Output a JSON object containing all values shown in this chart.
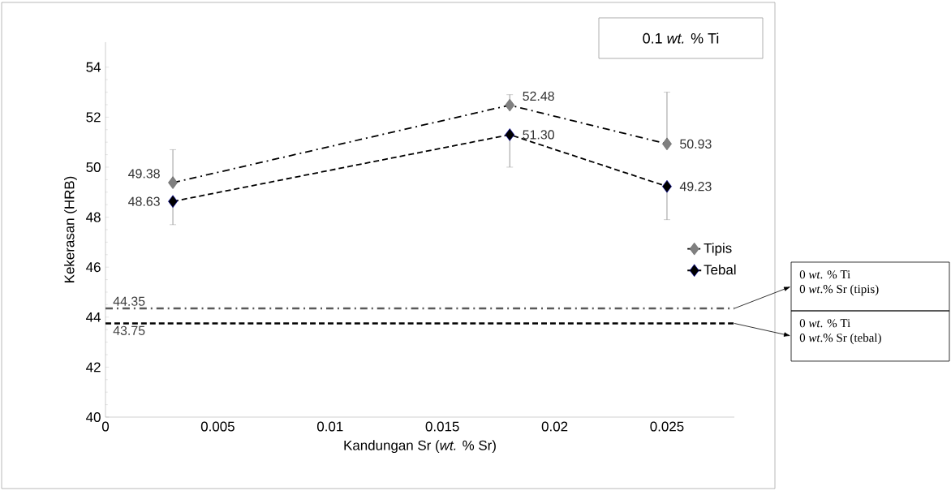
{
  "chart_data": {
    "type": "line",
    "xlabel": "Kandungan Sr (*wt.* % Sr)",
    "ylabel": "Kekerasan (HRB)",
    "x": [
      0.003,
      0.018,
      0.025
    ],
    "series": [
      {
        "name": "Tipis",
        "color": "#808080",
        "values": [
          49.38,
          52.48,
          50.93
        ],
        "value_labels": [
          "49.38",
          "52.48",
          "50.93"
        ],
        "errors": [
          [
            49.38,
            50.7
          ],
          [
            52.48,
            52.9
          ],
          [
            50.93,
            53.0
          ]
        ],
        "line_style": "dashdot"
      },
      {
        "name": "Tebal",
        "color": "#000000",
        "values": [
          48.63,
          51.3,
          49.23
        ],
        "value_labels": [
          "48.63",
          "51.30",
          "49.23"
        ],
        "errors": [
          [
            47.7,
            48.63
          ],
          [
            50.0,
            51.3
          ],
          [
            47.9,
            49.23
          ]
        ],
        "line_style": "dashed"
      }
    ],
    "xlim": [
      0,
      0.028
    ],
    "ylim": [
      40,
      55
    ],
    "xticks": [
      0,
      0.005,
      0.01,
      0.015,
      0.02,
      0.025
    ],
    "yticks": [
      40,
      42,
      44,
      46,
      48,
      50,
      52,
      54
    ],
    "marker": "diamond",
    "legend": "right",
    "grid": false,
    "ref_lines": [
      {
        "axis": "y",
        "value": 44.35,
        "label": "44.35",
        "color": "#595959",
        "line_style": "dashdot"
      },
      {
        "axis": "y",
        "value": 43.75,
        "label": "43.75",
        "color": "#000000",
        "line_style": "dashed"
      }
    ],
    "annotations": [
      "0.1 *wt.* % Ti",
      "0 *wt*. % Ti",
      "0 *wt*.% Sr  (tipis)",
      "0 *wt*. % Ti",
      "0 *wt*.% Sr  (tebal)"
    ]
  }
}
